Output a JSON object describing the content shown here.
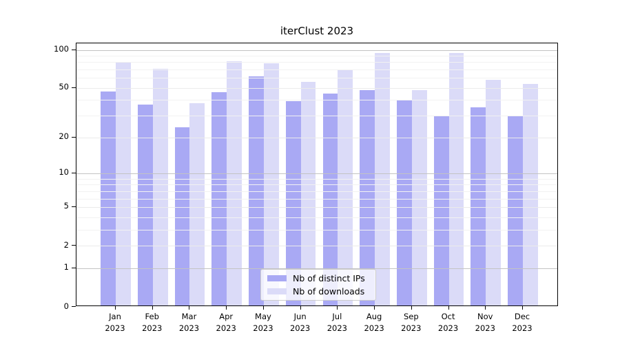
{
  "title": "iterClust 2023",
  "colors": {
    "bar_dark": "#a9a9f4",
    "bar_light": "#dbdbf8",
    "grid_major": "#c3c3c3",
    "grid_labeled": "#ebebeb",
    "grid_minor": "#f2f2f2",
    "axis": "#000000",
    "legend_border": "#cccccc"
  },
  "chart_data": {
    "type": "bar",
    "title": "iterClust 2023",
    "categories": [
      {
        "month": "Jan",
        "year": "2023"
      },
      {
        "month": "Feb",
        "year": "2023"
      },
      {
        "month": "Mar",
        "year": "2023"
      },
      {
        "month": "Apr",
        "year": "2023"
      },
      {
        "month": "May",
        "year": "2023"
      },
      {
        "month": "Jun",
        "year": "2023"
      },
      {
        "month": "Jul",
        "year": "2023"
      },
      {
        "month": "Aug",
        "year": "2023"
      },
      {
        "month": "Sep",
        "year": "2023"
      },
      {
        "month": "Oct",
        "year": "2023"
      },
      {
        "month": "Nov",
        "year": "2023"
      },
      {
        "month": "Dec",
        "year": "2023"
      }
    ],
    "series": [
      {
        "name": "Nb of distinct IPs",
        "color": "#a9a9f4",
        "values": [
          47,
          37,
          24,
          46,
          62,
          39,
          45,
          48,
          40,
          30,
          35,
          30
        ]
      },
      {
        "name": "Nb of downloads",
        "color": "#dbdbf8",
        "values": [
          80,
          71,
          38,
          81,
          78,
          56,
          69,
          94,
          48,
          94,
          58,
          54
        ]
      }
    ],
    "xlabel": "",
    "ylabel": "",
    "yscale": "log1p",
    "ylim": [
      0,
      115
    ],
    "y_ticks": [
      100,
      50,
      20,
      10,
      5,
      2,
      1,
      0
    ],
    "y_major_gridlines": [
      1,
      10,
      100
    ],
    "y_labeled_minor_gridlines": [
      2,
      5,
      20,
      50
    ],
    "y_minor_gridlines": [
      3,
      4,
      6,
      7,
      8,
      9,
      30,
      40,
      60,
      70,
      80,
      90
    ],
    "grid": true,
    "grid_above_bars": true,
    "legend": {
      "position": "lower center",
      "entries": [
        "Nb of distinct IPs",
        "Nb of downloads"
      ]
    }
  }
}
